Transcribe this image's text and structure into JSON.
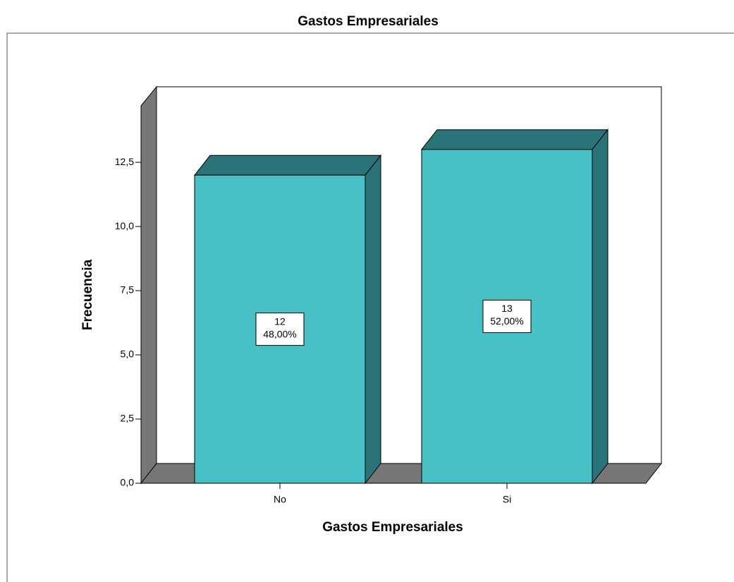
{
  "chart_data": {
    "type": "bar3d",
    "title": "Gastos Empresariales",
    "x_label": "Gastos Empresariales",
    "y_label": "Frecuencia",
    "categories": [
      "No",
      "Si"
    ],
    "values": [
      12,
      13
    ],
    "percent_labels": [
      "48,00%",
      "52,00%"
    ],
    "color": "#48c1c6",
    "side_color": "#2a7479",
    "ylim": [
      0,
      14.7
    ],
    "yticks": [
      {
        "value": 0,
        "label": "0,0"
      },
      {
        "value": 2.5,
        "label": "2,5"
      },
      {
        "value": 5,
        "label": "5,0"
      },
      {
        "value": 7.5,
        "label": "7,5"
      },
      {
        "value": 10,
        "label": "10,0"
      },
      {
        "value": 12.5,
        "label": "12,5"
      }
    ]
  }
}
